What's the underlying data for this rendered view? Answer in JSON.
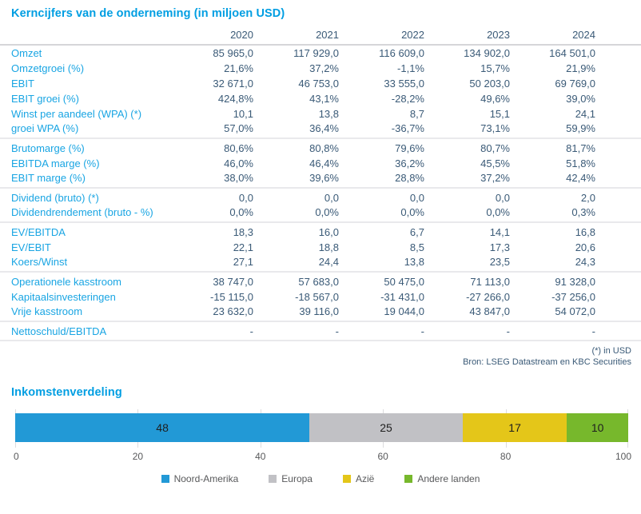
{
  "table": {
    "title": "Kerncijfers van de onderneming (in miljoen USD)",
    "years": [
      "2020",
      "2021",
      "2022",
      "2023",
      "2024"
    ],
    "groups": [
      {
        "rows": [
          {
            "label": "Omzet",
            "values": [
              "85 965,0",
              "117 929,0",
              "116 609,0",
              "134 902,0",
              "164 501,0"
            ]
          },
          {
            "label": "Omzetgroei (%)",
            "values": [
              "21,6%",
              "37,2%",
              "-1,1%",
              "15,7%",
              "21,9%"
            ]
          },
          {
            "label": "EBIT",
            "values": [
              "32 671,0",
              "46 753,0",
              "33 555,0",
              "50 203,0",
              "69 769,0"
            ]
          },
          {
            "label": "EBIT groei (%)",
            "values": [
              "424,8%",
              "43,1%",
              "-28,2%",
              "49,6%",
              "39,0%"
            ]
          },
          {
            "label": "Winst per aandeel (WPA) (*)",
            "values": [
              "10,1",
              "13,8",
              "8,7",
              "15,1",
              "24,1"
            ]
          },
          {
            "label": "groei WPA (%)",
            "values": [
              "57,0%",
              "36,4%",
              "-36,7%",
              "73,1%",
              "59,9%"
            ]
          }
        ]
      },
      {
        "rows": [
          {
            "label": "Brutomarge (%)",
            "values": [
              "80,6%",
              "80,8%",
              "79,6%",
              "80,7%",
              "81,7%"
            ]
          },
          {
            "label": "EBITDA marge (%)",
            "values": [
              "46,0%",
              "46,4%",
              "36,2%",
              "45,5%",
              "51,8%"
            ]
          },
          {
            "label": "EBIT marge (%)",
            "values": [
              "38,0%",
              "39,6%",
              "28,8%",
              "37,2%",
              "42,4%"
            ]
          }
        ]
      },
      {
        "rows": [
          {
            "label": "Dividend (bruto) (*)",
            "values": [
              "0,0",
              "0,0",
              "0,0",
              "0,0",
              "2,0"
            ]
          },
          {
            "label": "Dividendrendement (bruto - %)",
            "values": [
              "0,0%",
              "0,0%",
              "0,0%",
              "0,0%",
              "0,3%"
            ]
          }
        ]
      },
      {
        "rows": [
          {
            "label": "EV/EBITDA",
            "values": [
              "18,3",
              "16,0",
              "6,7",
              "14,1",
              "16,8"
            ]
          },
          {
            "label": "EV/EBIT",
            "values": [
              "22,1",
              "18,8",
              "8,5",
              "17,3",
              "20,6"
            ]
          },
          {
            "label": "Koers/Winst",
            "values": [
              "27,1",
              "24,4",
              "13,8",
              "23,5",
              "24,3"
            ]
          }
        ]
      },
      {
        "rows": [
          {
            "label": "Operationele kasstroom",
            "values": [
              "38 747,0",
              "57 683,0",
              "50 475,0",
              "71 113,0",
              "91 328,0"
            ]
          },
          {
            "label": "Kapitaalsinvesteringen",
            "values": [
              "-15 115,0",
              "-18 567,0",
              "-31 431,0",
              "-27 266,0",
              "-37 256,0"
            ]
          },
          {
            "label": "Vrije kasstroom",
            "values": [
              "23 632,0",
              "39 116,0",
              "19 044,0",
              "43 847,0",
              "54 072,0"
            ]
          }
        ]
      },
      {
        "rows": [
          {
            "label": "Nettoschuld/EBITDA",
            "values": [
              "-",
              "-",
              "-",
              "-",
              "-"
            ]
          }
        ]
      }
    ],
    "footnote": "(*) in USD",
    "source": "Bron: LSEG Datastream en KBC Securities"
  },
  "chart": {
    "title": "Inkomstenverdeling"
  },
  "chart_data": [
    {
      "type": "table",
      "title": "Kerncijfers van de onderneming (in miljoen USD)",
      "columns": [
        "",
        "2020",
        "2021",
        "2022",
        "2023",
        "2024"
      ],
      "rows": [
        [
          "Omzet",
          "85 965,0",
          "117 929,0",
          "116 609,0",
          "134 902,0",
          "164 501,0"
        ],
        [
          "Omzetgroei (%)",
          "21,6%",
          "37,2%",
          "-1,1%",
          "15,7%",
          "21,9%"
        ],
        [
          "EBIT",
          "32 671,0",
          "46 753,0",
          "33 555,0",
          "50 203,0",
          "69 769,0"
        ],
        [
          "EBIT groei (%)",
          "424,8%",
          "43,1%",
          "-28,2%",
          "49,6%",
          "39,0%"
        ],
        [
          "Winst per aandeel (WPA) (*)",
          "10,1",
          "13,8",
          "8,7",
          "15,1",
          "24,1"
        ],
        [
          "groei WPA (%)",
          "57,0%",
          "36,4%",
          "-36,7%",
          "73,1%",
          "59,9%"
        ],
        [
          "Brutomarge (%)",
          "80,6%",
          "80,8%",
          "79,6%",
          "80,7%",
          "81,7%"
        ],
        [
          "EBITDA marge (%)",
          "46,0%",
          "46,4%",
          "36,2%",
          "45,5%",
          "51,8%"
        ],
        [
          "EBIT marge (%)",
          "38,0%",
          "39,6%",
          "28,8%",
          "37,2%",
          "42,4%"
        ],
        [
          "Dividend (bruto) (*)",
          "0,0",
          "0,0",
          "0,0",
          "0,0",
          "2,0"
        ],
        [
          "Dividendrendement (bruto - %)",
          "0,0%",
          "0,0%",
          "0,0%",
          "0,0%",
          "0,3%"
        ],
        [
          "EV/EBITDA",
          "18,3",
          "16,0",
          "6,7",
          "14,1",
          "16,8"
        ],
        [
          "EV/EBIT",
          "22,1",
          "18,8",
          "8,5",
          "17,3",
          "20,6"
        ],
        [
          "Koers/Winst",
          "27,1",
          "24,4",
          "13,8",
          "23,5",
          "24,3"
        ],
        [
          "Operationele kasstroom",
          "38 747,0",
          "57 683,0",
          "50 475,0",
          "71 113,0",
          "91 328,0"
        ],
        [
          "Kapitaalsinvesteringen",
          "-15 115,0",
          "-18 567,0",
          "-31 431,0",
          "-27 266,0",
          "-37 256,0"
        ],
        [
          "Vrije kasstroom",
          "23 632,0",
          "39 116,0",
          "19 044,0",
          "43 847,0",
          "54 072,0"
        ],
        [
          "Nettoschuld/EBITDA",
          "-",
          "-",
          "-",
          "-",
          "-"
        ]
      ]
    },
    {
      "type": "bar",
      "title": "Inkomstenverdeling",
      "orientation": "horizontal",
      "stacked": true,
      "series": [
        {
          "name": "Noord-Amerika",
          "value": 48,
          "color": "#2299d6"
        },
        {
          "name": "Europa",
          "value": 25,
          "color": "#c1c1c5"
        },
        {
          "name": "Azië",
          "value": 17,
          "color": "#e4c619"
        },
        {
          "name": "Andere landen",
          "value": 10,
          "color": "#77b82c"
        }
      ],
      "xlim": [
        0,
        100
      ],
      "x_ticks": [
        0,
        20,
        40,
        60,
        80,
        100
      ],
      "grid": true,
      "legend_position": "bottom"
    }
  ]
}
